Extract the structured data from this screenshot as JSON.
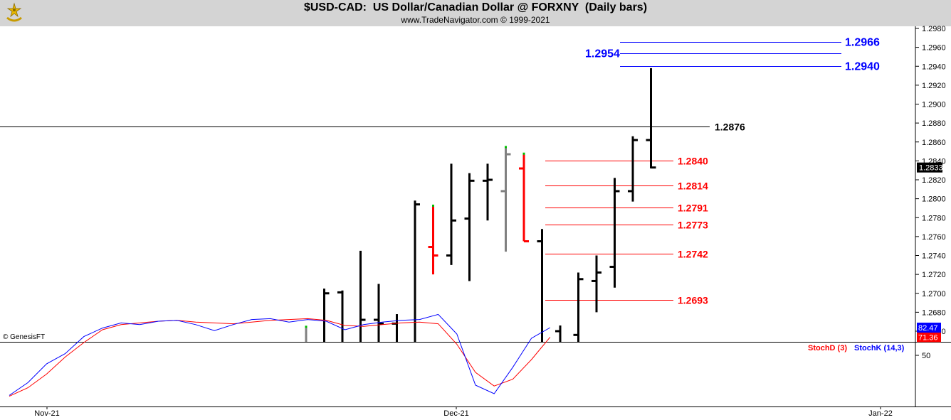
{
  "header": {
    "title": "$USD-CAD:  US Dollar/Canadian Dollar @ FORXNY  (Daily bars)",
    "subtitle": "www.TradeNavigator.com © 1999-2021",
    "copyright": "© GenesisFT"
  },
  "chart_data": [
    {
      "type": "ohlc-bar",
      "ylim": [
        1.2645,
        1.299
      ],
      "y_ticks": [
        "1.2980",
        "1.2960",
        "1.2940",
        "1.2920",
        "1.2900",
        "1.2880",
        "1.2860",
        "1.2840",
        "1.2820",
        "1.2800",
        "1.2780",
        "1.2760",
        "1.2740",
        "1.2720",
        "1.2700",
        "1.2680",
        "1.2660"
      ],
      "last_price": "1.2833",
      "bars": [
        {
          "h": 1.2665,
          "l": 1.2645,
          "o": null,
          "c": null,
          "color": "gray"
        },
        {
          "h": 1.2705,
          "l": 1.2645,
          "o": null,
          "c": 1.27,
          "color": "black"
        },
        {
          "h": 1.2703,
          "l": 1.2645,
          "o": 1.2701,
          "c": null,
          "color": "black"
        },
        {
          "h": 1.2745,
          "l": 1.2645,
          "o": null,
          "c": 1.2672,
          "color": "black"
        },
        {
          "h": 1.271,
          "l": 1.2645,
          "o": 1.2672,
          "c": 1.2668,
          "color": "black"
        },
        {
          "h": 1.2678,
          "l": 1.2645,
          "o": 1.2668,
          "c": null,
          "color": "black"
        },
        {
          "h": 1.2798,
          "l": 1.2645,
          "o": null,
          "c": 1.2794,
          "color": "black"
        },
        {
          "h": 1.2793,
          "l": 1.272,
          "o": 1.2749,
          "c": 1.274,
          "color": "red"
        },
        {
          "h": 1.2837,
          "l": 1.273,
          "o": 1.274,
          "c": 1.2777,
          "color": "black"
        },
        {
          "h": 1.2827,
          "l": 1.2713,
          "o": 1.2779,
          "c": 1.2819,
          "color": "black"
        },
        {
          "h": 1.2837,
          "l": 1.2777,
          "o": 1.2819,
          "c": 1.282,
          "color": "black"
        },
        {
          "h": 1.2855,
          "l": 1.2744,
          "o": 1.2808,
          "c": 1.2847,
          "color": "gray"
        },
        {
          "h": 1.2848,
          "l": 1.2755,
          "o": 1.2832,
          "c": 1.2755,
          "color": "red"
        },
        {
          "h": 1.2768,
          "l": 1.2645,
          "o": 1.2755,
          "c": null,
          "color": "black"
        },
        {
          "h": 1.2666,
          "l": 1.2645,
          "o": 1.266,
          "c": null,
          "color": "black"
        },
        {
          "h": 1.2722,
          "l": 1.2645,
          "o": 1.2656,
          "c": 1.2715,
          "color": "black"
        },
        {
          "h": 1.274,
          "l": 1.268,
          "o": 1.2713,
          "c": 1.2722,
          "color": "black"
        },
        {
          "h": 1.2822,
          "l": 1.2706,
          "o": 1.2728,
          "c": 1.2808,
          "color": "black"
        },
        {
          "h": 1.2866,
          "l": 1.2797,
          "o": 1.2808,
          "c": 1.2862,
          "color": "black"
        },
        {
          "h": 1.2938,
          "l": 1.2832,
          "o": 1.2862,
          "c": 1.2833,
          "color": "black"
        }
      ],
      "levels": [
        {
          "value": 1.2966,
          "label": "1.2966",
          "color": "#0000ff"
        },
        {
          "value": 1.2954,
          "label": "1.2954",
          "color": "#0000ff"
        },
        {
          "value": 1.294,
          "label": "1.2940",
          "color": "#0000ff"
        },
        {
          "value": 1.2876,
          "label": "1.2876",
          "color": "#000000"
        },
        {
          "value": 1.284,
          "label": "1.2840",
          "color": "#ff0000"
        },
        {
          "value": 1.2814,
          "label": "1.2814",
          "color": "#ff0000"
        },
        {
          "value": 1.2791,
          "label": "1.2791",
          "color": "#ff0000"
        },
        {
          "value": 1.2773,
          "label": "1.2773",
          "color": "#ff0000"
        },
        {
          "value": 1.2742,
          "label": "1.2742",
          "color": "#ff0000"
        },
        {
          "value": 1.2693,
          "label": "1.2693",
          "color": "#ff0000"
        }
      ]
    },
    {
      "type": "line",
      "ylim": [
        0,
        100
      ],
      "y_ticks": [
        "50"
      ],
      "series": [
        {
          "name": "StochD (3)",
          "color": "#ff0000",
          "last": "71.36",
          "values": [
            2,
            12,
            28,
            48,
            65,
            80,
            86,
            88,
            90,
            91,
            89,
            88,
            87,
            89,
            91,
            92,
            93,
            91,
            85,
            84,
            86,
            88,
            89,
            87,
            63,
            30,
            14,
            22,
            45,
            71.36
          ]
        },
        {
          "name": "StochK (14,3)",
          "color": "#0000ff",
          "last": "82.47",
          "values": [
            3,
            18,
            40,
            52,
            72,
            82,
            88,
            86,
            90,
            91,
            86,
            79,
            86,
            92,
            93,
            89,
            92,
            90,
            80,
            86,
            89,
            91,
            92,
            98,
            75,
            15,
            5,
            36,
            70,
            82.47
          ]
        }
      ]
    }
  ],
  "x_axis": {
    "labels": [
      "Nov-21",
      "Dec-21",
      "Jan-22"
    ]
  }
}
